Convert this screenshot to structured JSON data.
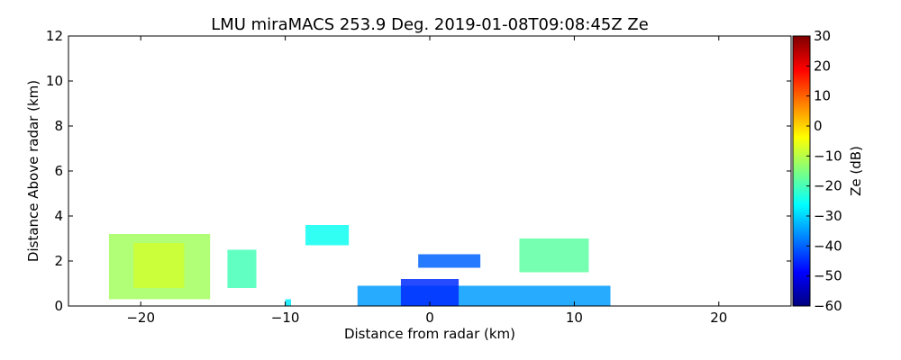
{
  "chart_data": {
    "type": "heatmap",
    "title": "LMU miraMACS 253.9 Deg. 2019-01-08T09:08:45Z  Ze",
    "xlabel": "Distance from radar (km)",
    "ylabel": "Distance Above radar  (km)",
    "xlim": [
      -25,
      25
    ],
    "ylim": [
      0,
      12
    ],
    "xticks": [
      -20,
      -10,
      0,
      10,
      20
    ],
    "yticks": [
      0,
      2,
      4,
      6,
      8,
      10,
      12
    ],
    "colorbar": {
      "label": "Ze (dB)",
      "range": [
        -60,
        30
      ],
      "ticks": [
        -60,
        -50,
        -40,
        -30,
        -20,
        -10,
        0,
        10,
        20,
        30
      ],
      "colormap": "jet"
    },
    "regions": [
      {
        "x": [
          -22.2,
          -15.2
        ],
        "y": [
          0.3,
          3.2
        ],
        "ze": -12
      },
      {
        "x": [
          -20.5,
          -17.0
        ],
        "y": [
          0.8,
          2.8
        ],
        "ze": -8
      },
      {
        "x": [
          -14.0,
          -12.0
        ],
        "y": [
          0.8,
          2.5
        ],
        "ze": -20
      },
      {
        "x": [
          -10.0,
          -9.6
        ],
        "y": [
          0.0,
          0.3
        ],
        "ze": -28
      },
      {
        "x": [
          -8.6,
          -5.6
        ],
        "y": [
          2.7,
          3.6
        ],
        "ze": -25
      },
      {
        "x": [
          -5.0,
          12.5
        ],
        "y": [
          0.0,
          0.9
        ],
        "ze": -35
      },
      {
        "x": [
          -2.0,
          2.0
        ],
        "y": [
          0.0,
          1.2
        ],
        "ze": -45
      },
      {
        "x": [
          -0.8,
          3.5
        ],
        "y": [
          1.7,
          2.3
        ],
        "ze": -40
      },
      {
        "x": [
          6.2,
          11.0
        ],
        "y": [
          1.5,
          3.0
        ],
        "ze": -18
      }
    ]
  }
}
